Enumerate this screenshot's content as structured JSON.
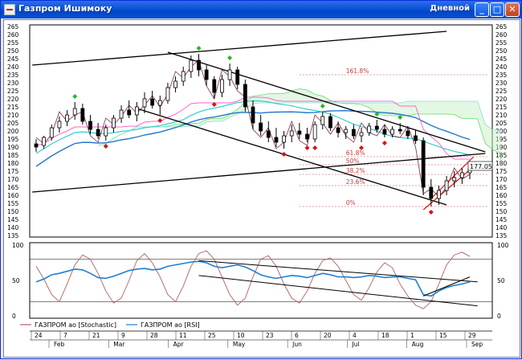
{
  "window": {
    "title": "Газпром Ишимоку",
    "timeframe": "Дневной",
    "buttons": {
      "minimize": "_",
      "maximize": "□",
      "close": "✕"
    }
  },
  "colors": {
    "candle": "#000000",
    "up_marker": "#22bb22",
    "down_marker": "#dd1111",
    "channel": "#000000",
    "fib": "#c04040",
    "tenkan": "#7a2a4a",
    "kijun": "#ff66cc",
    "senkou_a": "#66dd66",
    "senkou_b": "#88dddd",
    "ma_long": "#2277cc",
    "ma_mid": "#33cccc",
    "stochastic": "#b06060",
    "rsi": "#1e7fd0"
  },
  "chart_data": [
    {
      "type": "candlestick",
      "title": "",
      "ylim": [
        135,
        265
      ],
      "yticks": [
        135,
        140,
        145,
        150,
        155,
        160,
        165,
        170,
        175,
        180,
        185,
        190,
        195,
        200,
        205,
        210,
        215,
        220,
        225,
        230,
        235,
        240,
        245,
        250,
        255,
        260,
        265
      ],
      "last_price": "177.05",
      "fibonacci": [
        {
          "label": "161.8%",
          "value": 235
        },
        {
          "label": "61.8%",
          "value": 184
        },
        {
          "label": "50%",
          "value": 179
        },
        {
          "label": "38.2%",
          "value": 173
        },
        {
          "label": "23.6%",
          "value": 166
        },
        {
          "label": "0%",
          "value": 153
        }
      ],
      "ohlc": [
        {
          "d": 0,
          "o": 192,
          "h": 195,
          "l": 187,
          "c": 190
        },
        {
          "d": 1,
          "o": 191,
          "h": 197,
          "l": 189,
          "c": 196
        },
        {
          "d": 2,
          "o": 196,
          "h": 204,
          "l": 194,
          "c": 202
        },
        {
          "d": 3,
          "o": 202,
          "h": 209,
          "l": 199,
          "c": 206
        },
        {
          "d": 4,
          "o": 206,
          "h": 213,
          "l": 203,
          "c": 210
        },
        {
          "d": 5,
          "o": 210,
          "h": 218,
          "l": 207,
          "c": 214
        },
        {
          "d": 6,
          "o": 214,
          "h": 217,
          "l": 204,
          "c": 206
        },
        {
          "d": 7,
          "o": 206,
          "h": 210,
          "l": 198,
          "c": 201
        },
        {
          "d": 8,
          "o": 201,
          "h": 205,
          "l": 195,
          "c": 197
        },
        {
          "d": 9,
          "o": 197,
          "h": 204,
          "l": 194,
          "c": 202
        },
        {
          "d": 10,
          "o": 202,
          "h": 210,
          "l": 199,
          "c": 208
        },
        {
          "d": 11,
          "o": 208,
          "h": 216,
          "l": 205,
          "c": 213
        },
        {
          "d": 12,
          "o": 213,
          "h": 219,
          "l": 208,
          "c": 210
        },
        {
          "d": 13,
          "o": 210,
          "h": 218,
          "l": 206,
          "c": 215
        },
        {
          "d": 14,
          "o": 215,
          "h": 224,
          "l": 211,
          "c": 220
        },
        {
          "d": 15,
          "o": 220,
          "h": 225,
          "l": 214,
          "c": 216
        },
        {
          "d": 16,
          "o": 216,
          "h": 222,
          "l": 210,
          "c": 219
        },
        {
          "d": 17,
          "o": 219,
          "h": 230,
          "l": 217,
          "c": 227
        },
        {
          "d": 18,
          "o": 227,
          "h": 234,
          "l": 224,
          "c": 231
        },
        {
          "d": 19,
          "o": 231,
          "h": 240,
          "l": 228,
          "c": 237
        },
        {
          "d": 20,
          "o": 237,
          "h": 247,
          "l": 233,
          "c": 244
        },
        {
          "d": 21,
          "o": 244,
          "h": 248,
          "l": 234,
          "c": 238
        },
        {
          "d": 22,
          "o": 238,
          "h": 241,
          "l": 228,
          "c": 232
        },
        {
          "d": 23,
          "o": 232,
          "h": 234,
          "l": 220,
          "c": 224
        },
        {
          "d": 24,
          "o": 224,
          "h": 235,
          "l": 221,
          "c": 232
        },
        {
          "d": 25,
          "o": 232,
          "h": 242,
          "l": 228,
          "c": 238
        },
        {
          "d": 26,
          "o": 238,
          "h": 240,
          "l": 226,
          "c": 229
        },
        {
          "d": 27,
          "o": 229,
          "h": 232,
          "l": 212,
          "c": 215
        },
        {
          "d": 28,
          "o": 215,
          "h": 219,
          "l": 201,
          "c": 205
        },
        {
          "d": 29,
          "o": 205,
          "h": 210,
          "l": 197,
          "c": 200
        },
        {
          "d": 30,
          "o": 200,
          "h": 206,
          "l": 193,
          "c": 196
        },
        {
          "d": 31,
          "o": 196,
          "h": 202,
          "l": 190,
          "c": 193
        },
        {
          "d": 32,
          "o": 193,
          "h": 200,
          "l": 189,
          "c": 197
        },
        {
          "d": 33,
          "o": 197,
          "h": 204,
          "l": 193,
          "c": 200
        },
        {
          "d": 34,
          "o": 200,
          "h": 205,
          "l": 195,
          "c": 198
        },
        {
          "d": 35,
          "o": 198,
          "h": 202,
          "l": 193,
          "c": 195
        },
        {
          "d": 36,
          "o": 195,
          "h": 206,
          "l": 193,
          "c": 204
        },
        {
          "d": 37,
          "o": 204,
          "h": 212,
          "l": 201,
          "c": 209
        },
        {
          "d": 38,
          "o": 209,
          "h": 211,
          "l": 200,
          "c": 202
        },
        {
          "d": 39,
          "o": 202,
          "h": 206,
          "l": 196,
          "c": 199
        },
        {
          "d": 40,
          "o": 199,
          "h": 203,
          "l": 195,
          "c": 201
        },
        {
          "d": 41,
          "o": 201,
          "h": 204,
          "l": 195,
          "c": 197
        },
        {
          "d": 42,
          "o": 197,
          "h": 202,
          "l": 193,
          "c": 199
        },
        {
          "d": 43,
          "o": 199,
          "h": 205,
          "l": 197,
          "c": 203
        },
        {
          "d": 44,
          "o": 203,
          "h": 207,
          "l": 199,
          "c": 201
        },
        {
          "d": 45,
          "o": 201,
          "h": 204,
          "l": 196,
          "c": 198
        },
        {
          "d": 46,
          "o": 198,
          "h": 203,
          "l": 196,
          "c": 201
        },
        {
          "d": 47,
          "o": 201,
          "h": 205,
          "l": 198,
          "c": 200
        },
        {
          "d": 48,
          "o": 200,
          "h": 202,
          "l": 195,
          "c": 197
        },
        {
          "d": 49,
          "o": 197,
          "h": 201,
          "l": 192,
          "c": 194
        },
        {
          "d": 50,
          "o": 194,
          "h": 196,
          "l": 160,
          "c": 165
        },
        {
          "d": 51,
          "o": 165,
          "h": 170,
          "l": 153,
          "c": 158
        },
        {
          "d": 52,
          "o": 158,
          "h": 166,
          "l": 154,
          "c": 163
        },
        {
          "d": 53,
          "o": 163,
          "h": 172,
          "l": 160,
          "c": 169
        },
        {
          "d": 54,
          "o": 169,
          "h": 175,
          "l": 165,
          "c": 171
        },
        {
          "d": 55,
          "o": 171,
          "h": 177,
          "l": 167,
          "c": 174
        },
        {
          "d": 56,
          "o": 174,
          "h": 179,
          "l": 170,
          "c": 177
        }
      ],
      "xlabels_days": [
        "24",
        "7",
        "21",
        "9",
        "28",
        "11",
        "25",
        "10",
        "23",
        "6",
        "20",
        "4",
        "18",
        "1",
        "15",
        "29"
      ],
      "xlabels_months": [
        "Feb",
        "Mar",
        "Apr",
        "May",
        "Jun",
        "Jul",
        "Aug",
        "Sep"
      ]
    },
    {
      "type": "line",
      "title": "",
      "ylim": [
        0,
        100
      ],
      "yticks": [
        0,
        50,
        100
      ],
      "series": [
        {
          "name": "ГАЗПРОМ ао [Stochastic]",
          "values": [
            70,
            52,
            30,
            20,
            45,
            72,
            86,
            80,
            60,
            35,
            18,
            25,
            50,
            78,
            88,
            75,
            55,
            30,
            20,
            42,
            70,
            88,
            92,
            80,
            55,
            30,
            15,
            25,
            55,
            80,
            85,
            70,
            45,
            25,
            18,
            35,
            60,
            78,
            82,
            70,
            50,
            30,
            22,
            40,
            62,
            75,
            68,
            45,
            28,
            15,
            10,
            20,
            45,
            72,
            86,
            90,
            84
          ]
        },
        {
          "name": "ГАЗПРОМ ао [RSI]",
          "values": [
            48,
            52,
            58,
            60,
            63,
            66,
            65,
            60,
            54,
            53,
            56,
            60,
            64,
            66,
            67,
            65,
            66,
            70,
            72,
            74,
            76,
            77,
            75,
            70,
            68,
            70,
            72,
            69,
            64,
            58,
            55,
            53,
            55,
            57,
            56,
            54,
            57,
            60,
            58,
            55,
            55,
            54,
            55,
            57,
            56,
            54,
            55,
            55,
            53,
            51,
            30,
            28,
            35,
            40,
            43,
            45,
            48
          ]
        }
      ]
    }
  ]
}
